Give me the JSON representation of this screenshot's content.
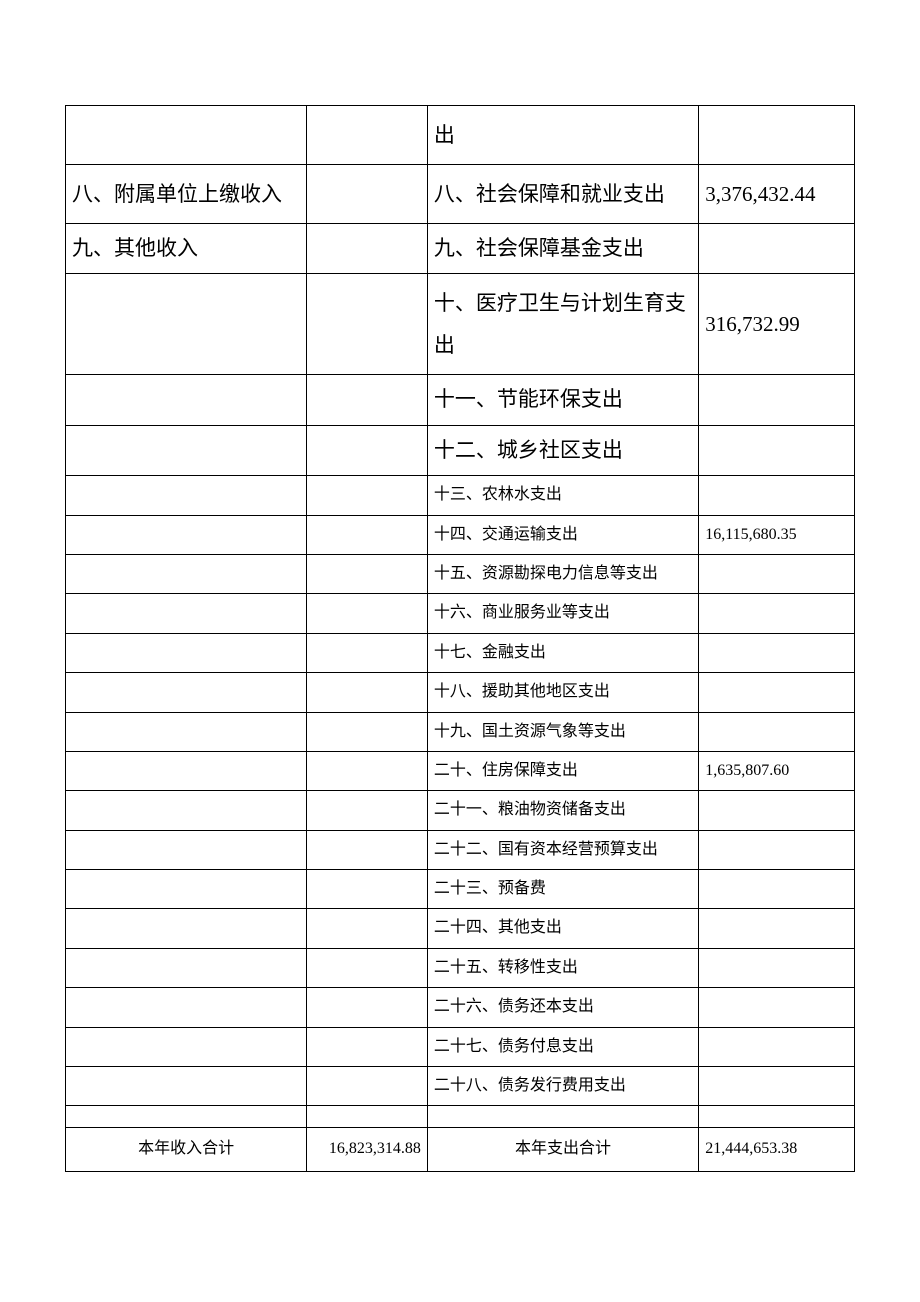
{
  "table": {
    "rows": [
      {
        "type": "large",
        "income_label": "",
        "income_value": "",
        "expense_label": "出",
        "expense_value": ""
      },
      {
        "type": "large",
        "income_label": "八、附属单位上缴收入",
        "income_value": "",
        "expense_label": "八、社会保障和就业支出",
        "expense_value": "3,376,432.44"
      },
      {
        "type": "medium",
        "income_label": "九、其他收入",
        "income_value": "",
        "expense_label": "九、社会保障基金支出",
        "expense_value": ""
      },
      {
        "type": "large",
        "income_label": "",
        "income_value": "",
        "expense_label": "十、医疗卫生与计划生育支出",
        "expense_value": "316,732.99"
      },
      {
        "type": "medium",
        "income_label": "",
        "income_value": "",
        "expense_label": "十一、节能环保支出",
        "expense_value": ""
      },
      {
        "type": "medium",
        "income_label": "",
        "income_value": "",
        "expense_label": "十二、城乡社区支出",
        "expense_value": ""
      },
      {
        "type": "small",
        "income_label": "",
        "income_value": "",
        "expense_label": "十三、农林水支出",
        "expense_value": ""
      },
      {
        "type": "small",
        "income_label": "",
        "income_value": "",
        "expense_label": "十四、交通运输支出",
        "expense_value": "16,115,680.35"
      },
      {
        "type": "small",
        "income_label": "",
        "income_value": "",
        "expense_label": "十五、资源勘探电力信息等支出",
        "expense_value": ""
      },
      {
        "type": "small",
        "income_label": "",
        "income_value": "",
        "expense_label": "十六、商业服务业等支出",
        "expense_value": ""
      },
      {
        "type": "small",
        "income_label": "",
        "income_value": "",
        "expense_label": "十七、金融支出",
        "expense_value": ""
      },
      {
        "type": "small",
        "income_label": "",
        "income_value": "",
        "expense_label": "十八、援助其他地区支出",
        "expense_value": ""
      },
      {
        "type": "small",
        "income_label": "",
        "income_value": "",
        "expense_label": "十九、国土资源气象等支出",
        "expense_value": ""
      },
      {
        "type": "small",
        "income_label": "",
        "income_value": "",
        "expense_label": "二十、住房保障支出",
        "expense_value": "1,635,807.60"
      },
      {
        "type": "small",
        "income_label": "",
        "income_value": "",
        "expense_label": "二十一、粮油物资储备支出",
        "expense_value": ""
      },
      {
        "type": "small",
        "income_label": "",
        "income_value": "",
        "expense_label": "二十二、国有资本经营预算支出",
        "expense_value": ""
      },
      {
        "type": "small",
        "income_label": "",
        "income_value": "",
        "expense_label": "二十三、预备费",
        "expense_value": ""
      },
      {
        "type": "small",
        "income_label": "",
        "income_value": "",
        "expense_label": "二十四、其他支出",
        "expense_value": ""
      },
      {
        "type": "small",
        "income_label": "",
        "income_value": "",
        "expense_label": "二十五、转移性支出",
        "expense_value": ""
      },
      {
        "type": "small",
        "income_label": "",
        "income_value": "",
        "expense_label": "二十六、债务还本支出",
        "expense_value": ""
      },
      {
        "type": "small",
        "income_label": "",
        "income_value": "",
        "expense_label": "二十七、债务付息支出",
        "expense_value": ""
      },
      {
        "type": "small",
        "income_label": "",
        "income_value": "",
        "expense_label": "二十八、债务发行费用支出",
        "expense_value": ""
      }
    ],
    "totals": {
      "income_total_label": "本年收入合计",
      "income_total_value": "16,823,314.88",
      "expense_total_label": "本年支出合计",
      "expense_total_value": "21,444,653.38"
    }
  }
}
